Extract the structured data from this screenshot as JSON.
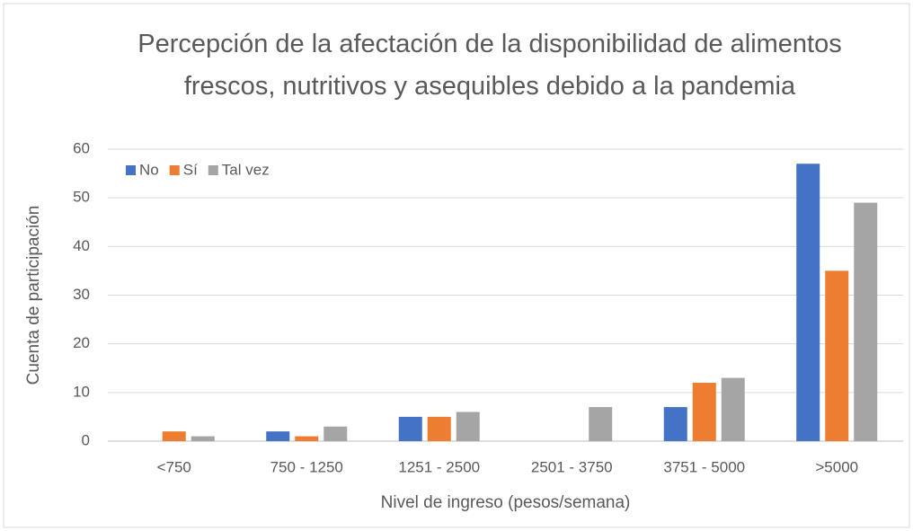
{
  "chart_data": {
    "type": "bar",
    "title": "Percepción de la afectación de la disponibilidad de alimentos frescos, nutritivos y asequibles debido a la pandemia",
    "x_label": "Nivel de ingreso (pesos/semana)",
    "y_label": "Cuenta de participación",
    "categories": [
      "<750",
      "750 - 1250",
      "1251 - 2500",
      "2501 - 3750",
      "3751 - 5000",
      ">5000"
    ],
    "series": [
      {
        "name": "No",
        "color": "#4472c4",
        "values": [
          0,
          2,
          5,
          0,
          7,
          57
        ]
      },
      {
        "name": "Sí",
        "color": "#ed7d31",
        "values": [
          2,
          1,
          5,
          0,
          12,
          35
        ]
      },
      {
        "name": "Tal vez",
        "color": "#a5a5a5",
        "values": [
          1,
          3,
          6,
          7,
          13,
          49
        ]
      }
    ],
    "ylim": [
      0,
      60
    ],
    "yticks": [
      0,
      10,
      20,
      30,
      40,
      50,
      60
    ],
    "grid": true,
    "legend": "top-left"
  }
}
